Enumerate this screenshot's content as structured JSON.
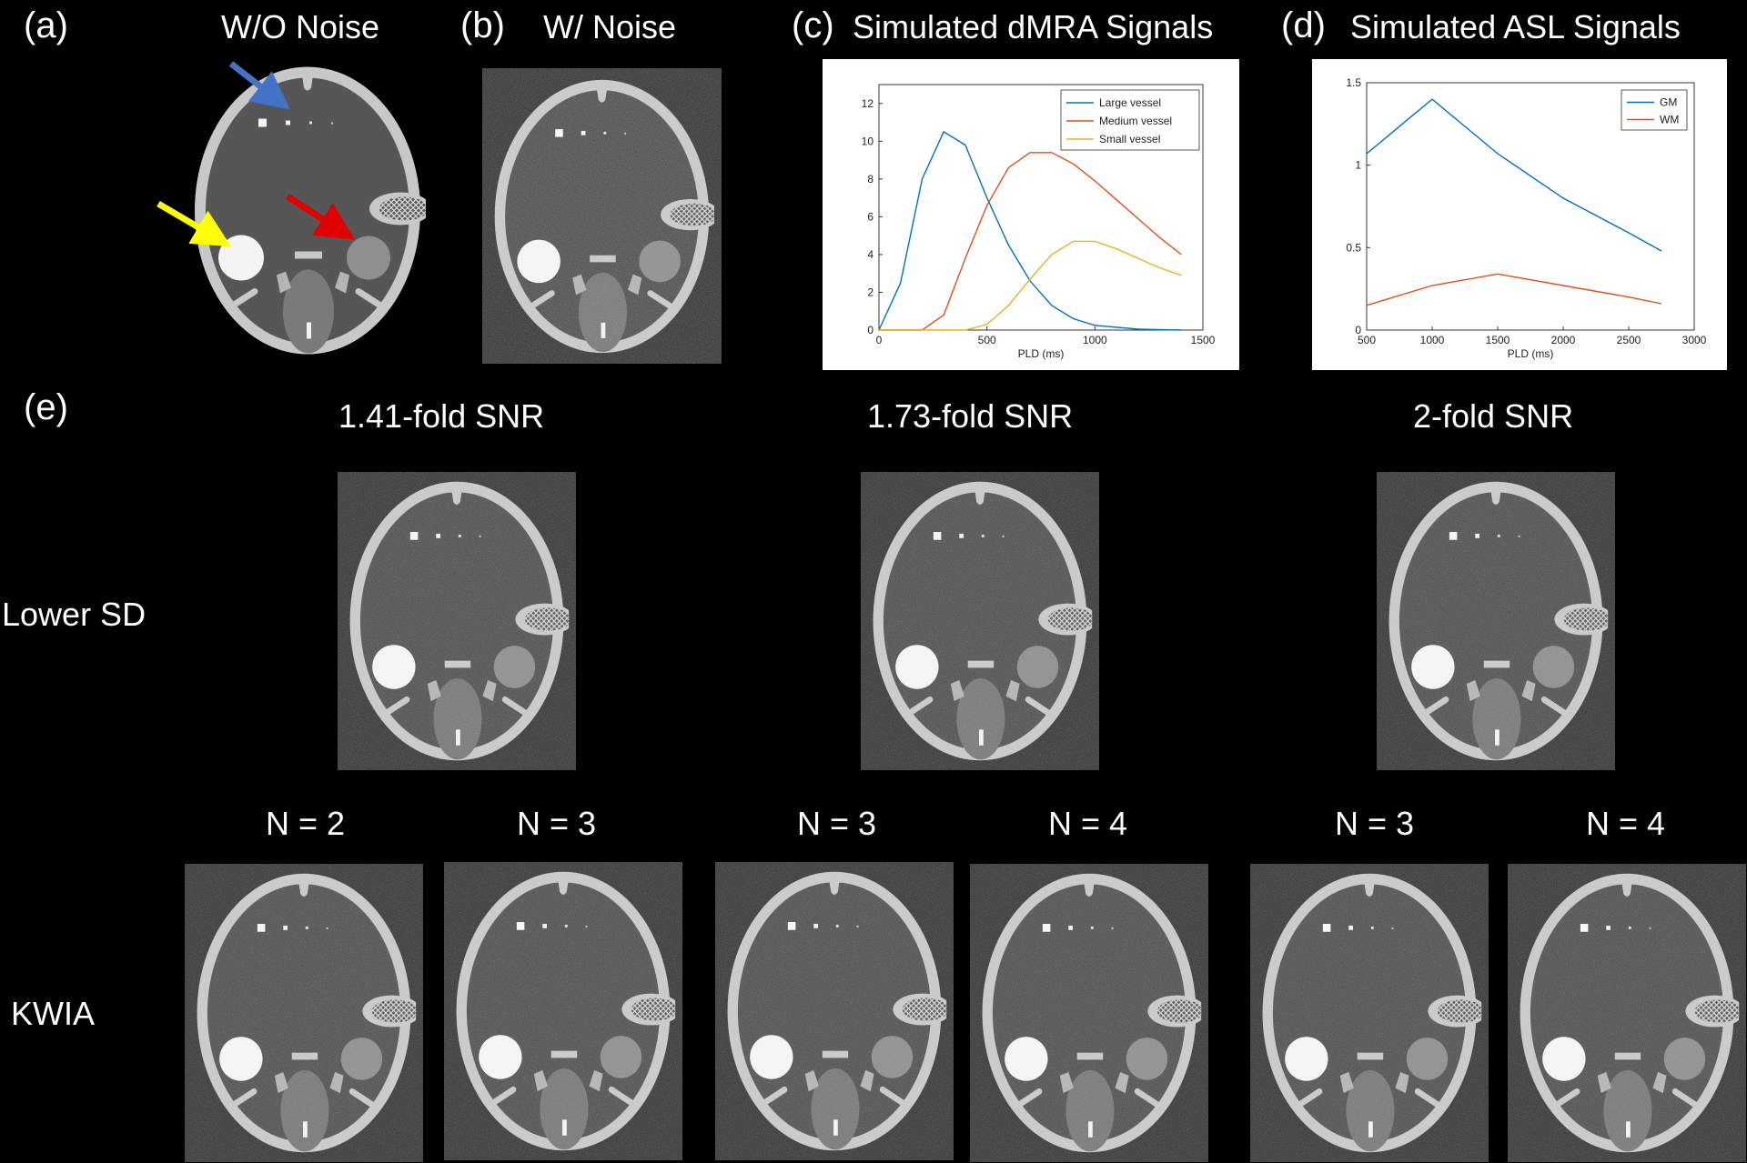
{
  "panels": {
    "a": {
      "letter": "(a)",
      "title": "W/O Noise"
    },
    "b": {
      "letter": "(b)",
      "title": "W/ Noise"
    },
    "c": {
      "letter": "(c)",
      "title": "Simulated dMRA Signals"
    },
    "d": {
      "letter": "(d)",
      "title": "Simulated ASL Signals"
    },
    "e": {
      "letter": "(e)"
    }
  },
  "snr_headers": [
    "1.41-fold SNR",
    "1.73-fold SNR",
    "2-fold SNR"
  ],
  "row_labels": {
    "lower_sd": "Lower SD",
    "kwia": "KWIA"
  },
  "n_labels": [
    "N = 2",
    "N = 3",
    "N = 3",
    "N = 4",
    "N = 3",
    "N = 4"
  ],
  "arrow_colors": {
    "blue": "#4472C4",
    "yellow": "#FFFF00",
    "red": "#E00000"
  },
  "chart_data": [
    {
      "type": "line",
      "panel": "c",
      "title": "Simulated dMRA Signals",
      "xlabel": "PLD (ms)",
      "ylabel": "",
      "xlim": [
        0,
        1500
      ],
      "ylim": [
        0,
        13
      ],
      "xticks": [
        0,
        500,
        1000,
        1500
      ],
      "yticks": [
        0,
        2,
        4,
        6,
        8,
        10,
        12
      ],
      "legend_position": "top-right",
      "series": [
        {
          "name": "Large vessel",
          "color": "#0072BD",
          "x": [
            0,
            100,
            200,
            300,
            400,
            500,
            600,
            700,
            800,
            900,
            1000,
            1200,
            1400
          ],
          "y": [
            0,
            2.5,
            8.0,
            10.5,
            9.8,
            7.0,
            4.5,
            2.6,
            1.3,
            0.6,
            0.25,
            0.05,
            0
          ]
        },
        {
          "name": "Medium vessel",
          "color": "#D95319",
          "x": [
            0,
            200,
            300,
            400,
            500,
            600,
            700,
            800,
            900,
            1000,
            1100,
            1200,
            1300,
            1400
          ],
          "y": [
            0,
            0,
            0.8,
            3.8,
            6.6,
            8.6,
            9.4,
            9.4,
            8.8,
            7.9,
            6.9,
            5.9,
            4.9,
            4.0
          ]
        },
        {
          "name": "Small vessel",
          "color": "#EDB120",
          "x": [
            0,
            400,
            500,
            600,
            700,
            800,
            900,
            1000,
            1100,
            1200,
            1300,
            1400
          ],
          "y": [
            0,
            0,
            0.3,
            1.3,
            2.7,
            4.0,
            4.7,
            4.7,
            4.3,
            3.8,
            3.3,
            2.9
          ]
        }
      ]
    },
    {
      "type": "line",
      "panel": "d",
      "title": "Simulated ASL Signals",
      "xlabel": "PLD (ms)",
      "ylabel": "",
      "xlim": [
        500,
        3000
      ],
      "ylim": [
        0,
        1.5
      ],
      "xticks": [
        500,
        1000,
        1500,
        2000,
        2500,
        3000
      ],
      "yticks": [
        0,
        0.5,
        1,
        1.5
      ],
      "legend_position": "top-right",
      "series": [
        {
          "name": "GM",
          "color": "#0072BD",
          "x": [
            500,
            1000,
            1500,
            2000,
            2500,
            2750
          ],
          "y": [
            1.07,
            1.4,
            1.07,
            0.8,
            0.59,
            0.48
          ]
        },
        {
          "name": "WM",
          "color": "#D95319",
          "x": [
            500,
            1000,
            1500,
            2000,
            2500,
            2750
          ],
          "y": [
            0.15,
            0.27,
            0.34,
            0.27,
            0.2,
            0.16
          ]
        }
      ]
    }
  ]
}
